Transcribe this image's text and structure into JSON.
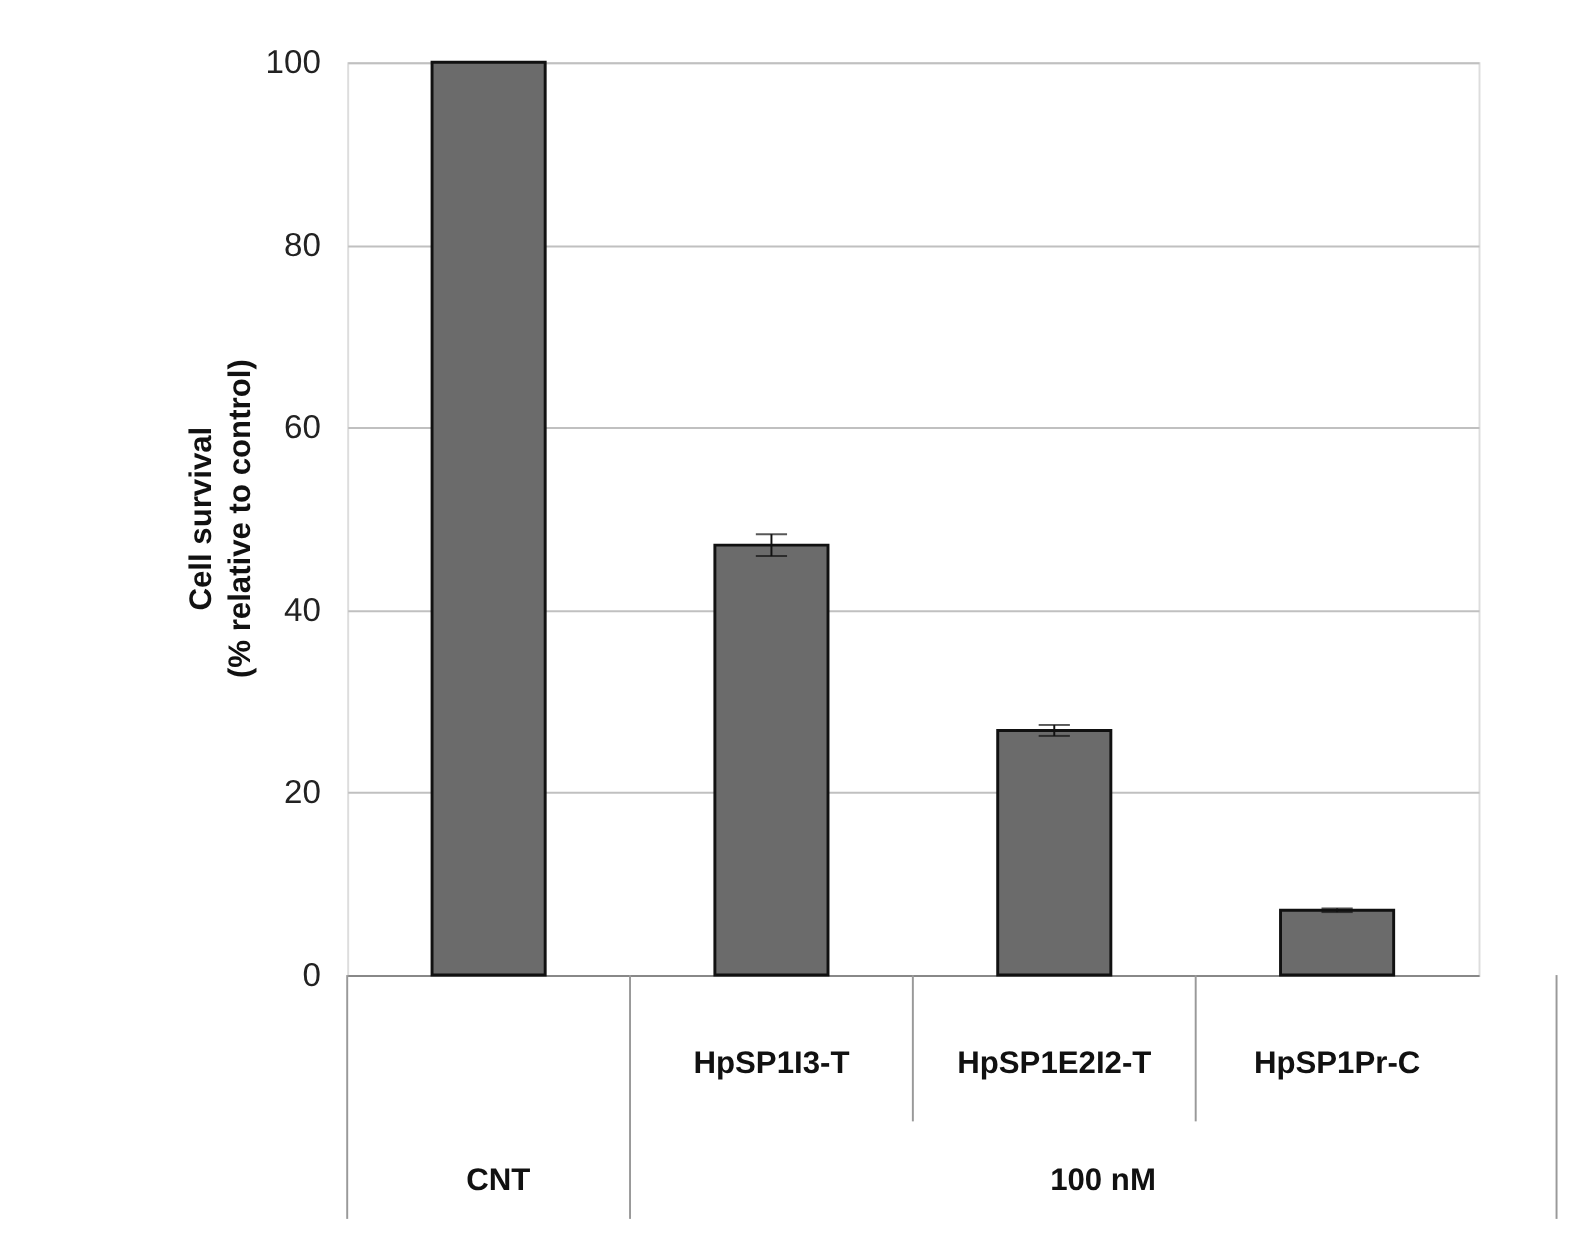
{
  "chart_data": {
    "type": "bar",
    "ylabel": "Cell survival\n(% relative to control)",
    "categories": [
      null,
      "HpSP1I3-T",
      "HpSP1E2I2-T",
      "HpSP1Pr-C"
    ],
    "values": [
      100,
      47.1,
      26.8,
      7.1
    ],
    "errors": [
      null,
      1.2,
      0.6,
      0.2
    ],
    "color": "#6b6b6b",
    "ylim": [
      0,
      100
    ],
    "yticks": [
      0,
      20,
      40,
      60,
      80,
      100
    ],
    "grid": "y",
    "annotations": [
      "CNT",
      "100 nM"
    ]
  }
}
